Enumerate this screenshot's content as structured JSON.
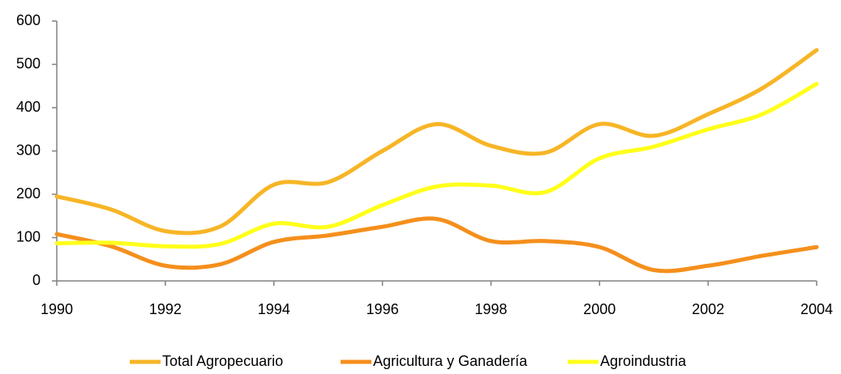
{
  "chart_data": {
    "type": "line",
    "x": [
      1990,
      1991,
      1992,
      1993,
      1994,
      1995,
      1996,
      1997,
      1998,
      1999,
      2000,
      2001,
      2002,
      2003,
      2004
    ],
    "series": [
      {
        "name": "Total Agropecuario",
        "color": "#f7b526",
        "values": [
          195,
          165,
          115,
          125,
          222,
          228,
          300,
          362,
          312,
          296,
          362,
          335,
          385,
          445,
          533
        ]
      },
      {
        "name": "Agricultura y Ganadería",
        "color": "#f58f1c",
        "values": [
          108,
          80,
          35,
          38,
          90,
          105,
          125,
          143,
          92,
          92,
          78,
          25,
          35,
          58,
          78
        ]
      },
      {
        "name": "Agroindustria",
        "color": "#ffff1a",
        "values": [
          87,
          88,
          80,
          85,
          132,
          125,
          175,
          218,
          220,
          205,
          283,
          310,
          350,
          385,
          455
        ]
      }
    ],
    "xlim": [
      1990,
      2004
    ],
    "xticks": [
      1990,
      1992,
      1994,
      1996,
      1998,
      2000,
      2002,
      2004
    ],
    "ylim": [
      0,
      600
    ],
    "yticks": [
      0,
      100,
      200,
      300,
      400,
      500,
      600
    ],
    "legend": "bottom"
  }
}
